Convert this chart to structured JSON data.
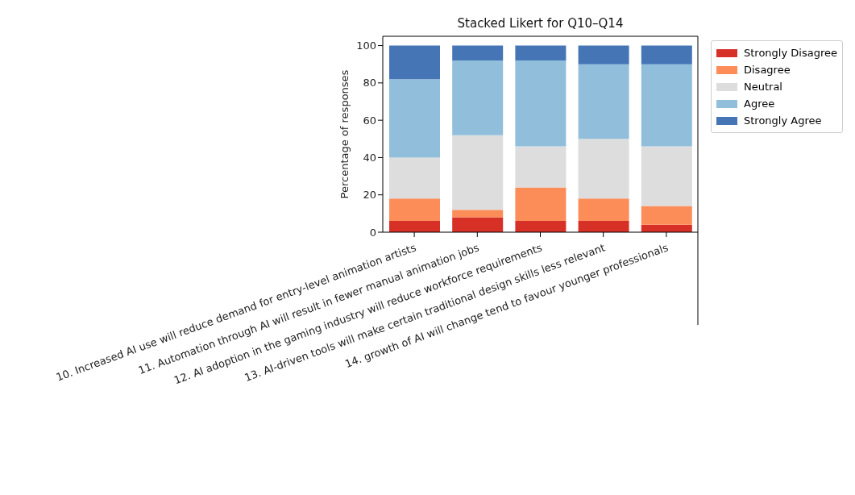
{
  "chart_data": {
    "type": "bar",
    "stacked": true,
    "title": "Stacked Likert for Q10–Q14",
    "ylabel": "Percentage of responses",
    "categories": [
      "10. Increased AI use will reduce demand for entry-level animation artists",
      "11. Automation through AI will result in fewer manual animation jobs",
      "12. AI adoption in the gaming industry will reduce workforce requirements",
      "13. AI-driven tools will make certain traditional design skills less relevant",
      "14. growth of AI will change tend to favour younger professionals"
    ],
    "series": [
      {
        "name": "Strongly Disagree",
        "color": "#d73027",
        "values": [
          6,
          8,
          6,
          6,
          4
        ]
      },
      {
        "name": "Disagree",
        "color": "#fc8d59",
        "values": [
          12,
          4,
          18,
          12,
          10
        ]
      },
      {
        "name": "Neutral",
        "color": "#dddddd",
        "values": [
          22,
          40,
          22,
          32,
          32
        ]
      },
      {
        "name": "Agree",
        "color": "#91bfdb",
        "values": [
          42,
          40,
          46,
          40,
          44
        ]
      },
      {
        "name": "Strongly Agree",
        "color": "#4575b4",
        "values": [
          18,
          8,
          8,
          10,
          10
        ]
      }
    ],
    "ylim": [
      0,
      105
    ],
    "yticks": [
      0,
      20,
      40,
      60,
      80,
      100
    ],
    "legend": "top right",
    "grid": false
  }
}
